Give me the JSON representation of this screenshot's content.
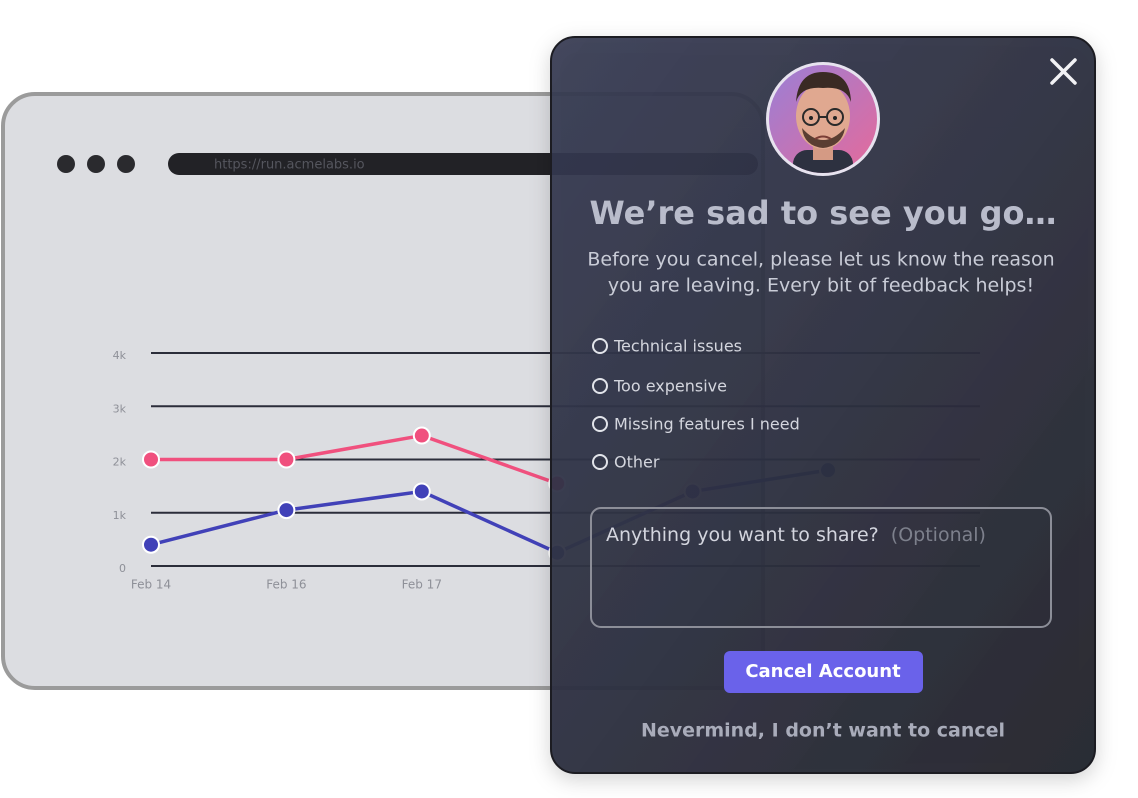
{
  "browser": {
    "url": "https://run.acmelabs.io"
  },
  "chart_data": {
    "type": "line",
    "categories": [
      "Feb 14",
      "Feb 16",
      "Feb 17",
      null,
      null,
      null
    ],
    "series": [
      {
        "color": "#f0507e",
        "values": [
          2000,
          2000,
          2450,
          1550,
          null,
          null
        ]
      },
      {
        "color": "#4141b8",
        "values": [
          400,
          1050,
          1400,
          250,
          1400,
          1800
        ]
      }
    ],
    "ylim": [
      0,
      4000
    ],
    "yticks": [
      0,
      {
        "value": 1000,
        "label": "1k"
      },
      {
        "value": 2000,
        "label": "2k"
      },
      {
        "value": 3000,
        "label": "3k"
      },
      {
        "value": 4000,
        "label": "4k"
      }
    ],
    "grid": true
  },
  "modal": {
    "title": "We’re sad to see you go…",
    "body": [
      "Before you cancel, please let us know the reason",
      "you are leaving. Every bit of feedback helps!"
    ],
    "options": [
      "Technical issues",
      "Too expensive",
      "Missing features I need",
      "Other"
    ],
    "textarea": {
      "placeholder": "Anything you want to share?",
      "hint": "(Optional)"
    },
    "button": "Cancel Account",
    "link": "Nevermind, I don’t want to cancel"
  }
}
